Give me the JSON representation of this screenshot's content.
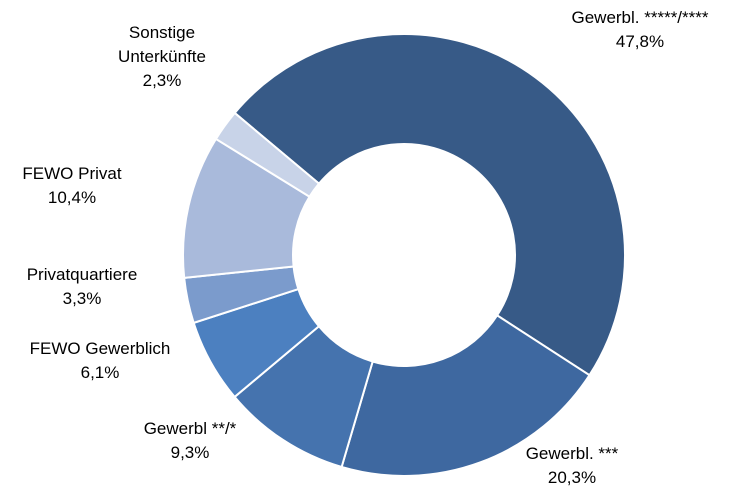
{
  "chart_data": {
    "type": "donut",
    "categories": [
      "Gewerbl. *****/****",
      "Gewerbl. ***",
      "Gewerbl **/*",
      "FEWO Gewerblich",
      "Privatquartiere",
      "FEWO Privat",
      "Sonstige Unterkünfte"
    ],
    "values": [
      47.8,
      20.3,
      9.3,
      6.1,
      3.3,
      10.4,
      2.3
    ],
    "value_labels": [
      "47,8%",
      "20,3%",
      "9,3%",
      "6,1%",
      "3,3%",
      "10,4%",
      "2,3%"
    ],
    "colors": [
      "#375a87",
      "#3e68a0",
      "#4573ae",
      "#4c80c0",
      "#7b9bcc",
      "#a9badb",
      "#c8d3e8"
    ]
  }
}
